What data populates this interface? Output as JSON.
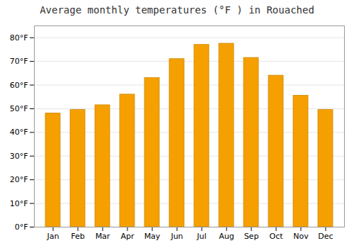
{
  "chart_data": {
    "type": "bar",
    "title": "Average monthly temperatures (°F ) in Rouached",
    "categories": [
      "Jan",
      "Feb",
      "Mar",
      "Apr",
      "May",
      "Jun",
      "Jul",
      "Aug",
      "Sep",
      "Oct",
      "Nov",
      "Dec"
    ],
    "values": [
      48,
      49.5,
      51.5,
      56,
      63,
      71,
      77,
      77.5,
      71.5,
      64,
      55.5,
      49.5
    ],
    "color": "#F5A000",
    "ylim": [
      0,
      85
    ],
    "yticks": [
      {
        "value": 0,
        "label": "0°F"
      },
      {
        "value": 10,
        "label": "10°F"
      },
      {
        "value": 20,
        "label": "20°F"
      },
      {
        "value": 30,
        "label": "30°F"
      },
      {
        "value": 40,
        "label": "40°F"
      },
      {
        "value": 50,
        "label": "50°F"
      },
      {
        "value": 60,
        "label": "60°F"
      },
      {
        "value": 70,
        "label": "70°F"
      },
      {
        "value": 80,
        "label": "80°F"
      }
    ],
    "grid": true
  }
}
